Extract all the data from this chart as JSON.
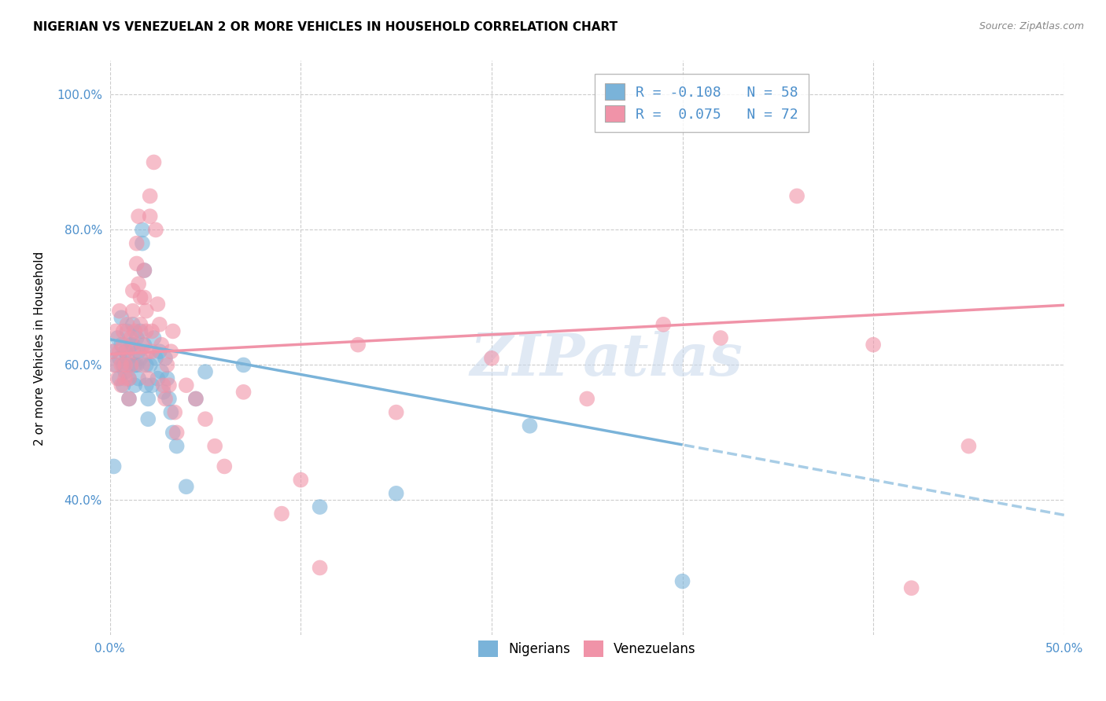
{
  "title": "NIGERIAN VS VENEZUELAN 2 OR MORE VEHICLES IN HOUSEHOLD CORRELATION CHART",
  "source": "Source: ZipAtlas.com",
  "ylabel": "2 or more Vehicles in Household",
  "nigerian_color": "#7ab3d9",
  "venezuelan_color": "#f093a8",
  "watermark_text": "ZIPatlas",
  "nigerian_R": -0.108,
  "venezuelan_R": 0.075,
  "nigerian_N": 58,
  "venezuelan_N": 72,
  "nigerian_points": [
    [
      0.001,
      0.62
    ],
    [
      0.002,
      0.45
    ],
    [
      0.003,
      0.6
    ],
    [
      0.004,
      0.64
    ],
    [
      0.005,
      0.61
    ],
    [
      0.005,
      0.58
    ],
    [
      0.006,
      0.67
    ],
    [
      0.006,
      0.63
    ],
    [
      0.007,
      0.6
    ],
    [
      0.007,
      0.57
    ],
    [
      0.008,
      0.62
    ],
    [
      0.008,
      0.59
    ],
    [
      0.009,
      0.65
    ],
    [
      0.009,
      0.61
    ],
    [
      0.01,
      0.58
    ],
    [
      0.01,
      0.55
    ],
    [
      0.011,
      0.63
    ],
    [
      0.011,
      0.6
    ],
    [
      0.012,
      0.66
    ],
    [
      0.012,
      0.63
    ],
    [
      0.013,
      0.6
    ],
    [
      0.013,
      0.57
    ],
    [
      0.014,
      0.64
    ],
    [
      0.014,
      0.6
    ],
    [
      0.015,
      0.62
    ],
    [
      0.015,
      0.58
    ],
    [
      0.016,
      0.65
    ],
    [
      0.016,
      0.61
    ],
    [
      0.017,
      0.8
    ],
    [
      0.017,
      0.78
    ],
    [
      0.018,
      0.74
    ],
    [
      0.018,
      0.63
    ],
    [
      0.019,
      0.6
    ],
    [
      0.019,
      0.57
    ],
    [
      0.02,
      0.55
    ],
    [
      0.02,
      0.52
    ],
    [
      0.021,
      0.6
    ],
    [
      0.022,
      0.57
    ],
    [
      0.023,
      0.64
    ],
    [
      0.024,
      0.61
    ],
    [
      0.025,
      0.58
    ],
    [
      0.026,
      0.62
    ],
    [
      0.027,
      0.59
    ],
    [
      0.028,
      0.56
    ],
    [
      0.029,
      0.61
    ],
    [
      0.03,
      0.58
    ],
    [
      0.031,
      0.55
    ],
    [
      0.032,
      0.53
    ],
    [
      0.033,
      0.5
    ],
    [
      0.035,
      0.48
    ],
    [
      0.04,
      0.42
    ],
    [
      0.045,
      0.55
    ],
    [
      0.05,
      0.59
    ],
    [
      0.07,
      0.6
    ],
    [
      0.11,
      0.39
    ],
    [
      0.15,
      0.41
    ],
    [
      0.22,
      0.51
    ],
    [
      0.3,
      0.28
    ]
  ],
  "venezuelan_points": [
    [
      0.001,
      0.62
    ],
    [
      0.002,
      0.6
    ],
    [
      0.003,
      0.65
    ],
    [
      0.004,
      0.58
    ],
    [
      0.005,
      0.62
    ],
    [
      0.005,
      0.68
    ],
    [
      0.006,
      0.6
    ],
    [
      0.006,
      0.57
    ],
    [
      0.007,
      0.63
    ],
    [
      0.007,
      0.65
    ],
    [
      0.008,
      0.6
    ],
    [
      0.008,
      0.58
    ],
    [
      0.009,
      0.66
    ],
    [
      0.009,
      0.62
    ],
    [
      0.01,
      0.58
    ],
    [
      0.01,
      0.55
    ],
    [
      0.011,
      0.64
    ],
    [
      0.011,
      0.6
    ],
    [
      0.012,
      0.71
    ],
    [
      0.012,
      0.68
    ],
    [
      0.013,
      0.65
    ],
    [
      0.013,
      0.62
    ],
    [
      0.014,
      0.78
    ],
    [
      0.014,
      0.75
    ],
    [
      0.015,
      0.82
    ],
    [
      0.015,
      0.72
    ],
    [
      0.016,
      0.7
    ],
    [
      0.016,
      0.66
    ],
    [
      0.017,
      0.63
    ],
    [
      0.017,
      0.6
    ],
    [
      0.018,
      0.74
    ],
    [
      0.018,
      0.7
    ],
    [
      0.019,
      0.68
    ],
    [
      0.019,
      0.65
    ],
    [
      0.02,
      0.62
    ],
    [
      0.02,
      0.58
    ],
    [
      0.021,
      0.85
    ],
    [
      0.021,
      0.82
    ],
    [
      0.022,
      0.65
    ],
    [
      0.022,
      0.62
    ],
    [
      0.023,
      0.9
    ],
    [
      0.024,
      0.8
    ],
    [
      0.025,
      0.69
    ],
    [
      0.026,
      0.66
    ],
    [
      0.027,
      0.63
    ],
    [
      0.028,
      0.57
    ],
    [
      0.029,
      0.55
    ],
    [
      0.03,
      0.6
    ],
    [
      0.031,
      0.57
    ],
    [
      0.032,
      0.62
    ],
    [
      0.033,
      0.65
    ],
    [
      0.034,
      0.53
    ],
    [
      0.035,
      0.5
    ],
    [
      0.04,
      0.57
    ],
    [
      0.045,
      0.55
    ],
    [
      0.05,
      0.52
    ],
    [
      0.055,
      0.48
    ],
    [
      0.06,
      0.45
    ],
    [
      0.07,
      0.56
    ],
    [
      0.09,
      0.38
    ],
    [
      0.1,
      0.43
    ],
    [
      0.11,
      0.3
    ],
    [
      0.13,
      0.63
    ],
    [
      0.15,
      0.53
    ],
    [
      0.2,
      0.61
    ],
    [
      0.25,
      0.55
    ],
    [
      0.29,
      0.66
    ],
    [
      0.32,
      0.64
    ],
    [
      0.36,
      0.85
    ],
    [
      0.4,
      0.63
    ],
    [
      0.42,
      0.27
    ],
    [
      0.45,
      0.48
    ]
  ],
  "xlim": [
    0.0,
    0.5
  ],
  "ylim": [
    0.2,
    1.05
  ],
  "y_ticks": [
    0.4,
    0.6,
    0.8,
    1.0
  ],
  "y_tick_labels": [
    "40.0%",
    "60.0%",
    "80.0%",
    "100.0%"
  ],
  "x_ticks": [
    0.0,
    0.1,
    0.2,
    0.3,
    0.4,
    0.5
  ],
  "x_tick_labels": [
    "0.0%",
    "",
    "",
    "",
    "",
    "50.0%"
  ],
  "background_color": "#ffffff",
  "grid_color": "#cccccc",
  "title_fontsize": 11,
  "axis_color": "#4d90cc",
  "nigerian_line_intercept": 0.638,
  "nigerian_line_slope": -0.52,
  "venezuelan_line_intercept": 0.616,
  "venezuelan_line_slope": 0.145
}
